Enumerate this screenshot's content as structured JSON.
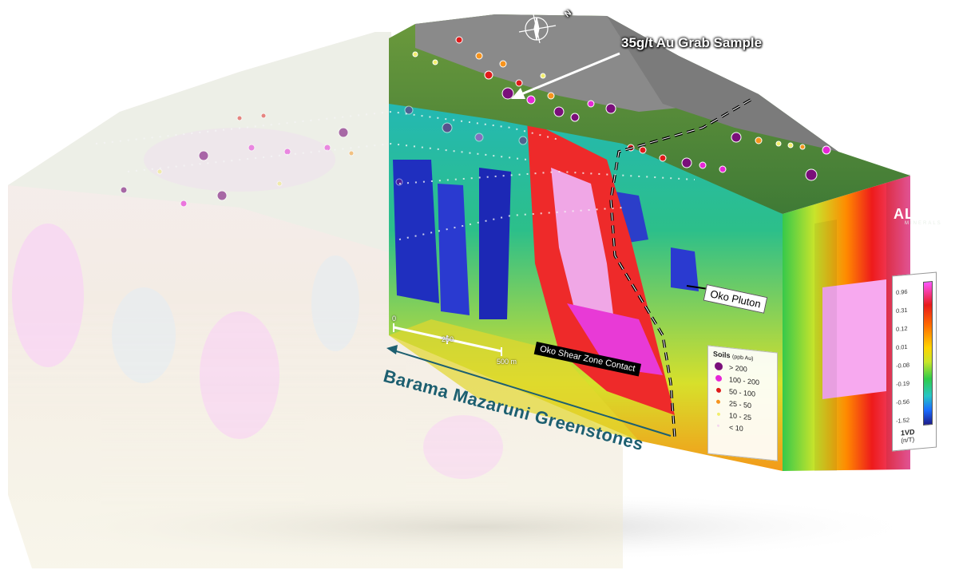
{
  "callouts": {
    "grab_sample": "35g/t Au Grab Sample",
    "shear_zone": "Oko Shear Zone Contact",
    "pluton": "Oko Pluton",
    "greenstones": "Barama Mazaruni Greenstones"
  },
  "scale_bar": {
    "ticks": [
      "0",
      "250",
      "500 m"
    ]
  },
  "soils_legend": {
    "title": "Soils",
    "unit": "(ppb Au)",
    "items": [
      {
        "label": "> 200",
        "color": "#7a0f7a"
      },
      {
        "label": "100 - 200",
        "color": "#e627d6"
      },
      {
        "label": "50 - 100",
        "color": "#e01b1b"
      },
      {
        "label": "25 - 50",
        "color": "#f7941d"
      },
      {
        "label": "10 - 25",
        "color": "#f2ee6b"
      },
      {
        "label": "< 10",
        "color": "#f5d7ef"
      }
    ]
  },
  "vd_legend": {
    "ticks": [
      "0.96",
      "0.31",
      "0.12",
      "0.01",
      "-0.08",
      "-0.19",
      "-0.56",
      "-1.52"
    ],
    "title": "1VD",
    "unit": "(n/T)"
  },
  "logo": {
    "name": "ALTAIR",
    "sub": "MINERALS"
  },
  "compass": {
    "north": "N"
  }
}
